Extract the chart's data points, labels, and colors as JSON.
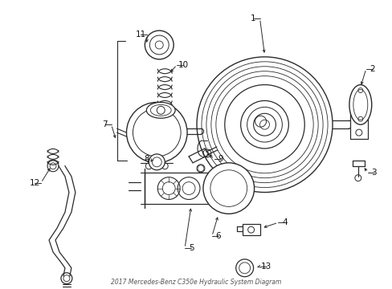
{
  "title": "2017 Mercedes-Benz C350e Hydraulic System Diagram",
  "bg_color": "#ffffff",
  "line_color": "#2a2a2a",
  "label_color": "#111111",
  "fig_width": 4.89,
  "fig_height": 3.6,
  "dpi": 100
}
